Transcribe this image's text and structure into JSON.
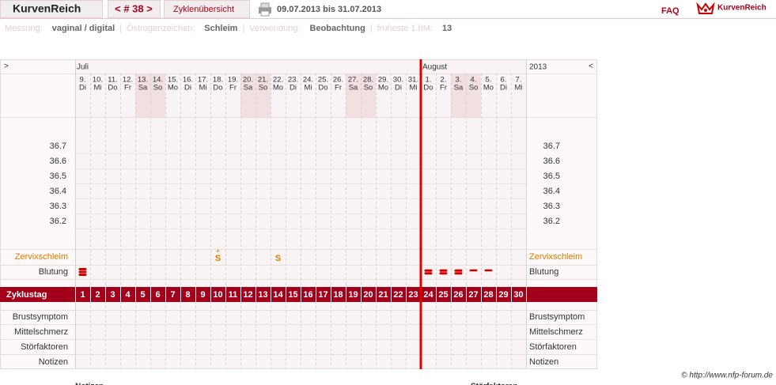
{
  "header": {
    "app_name": "KurvenReich",
    "cycle_nav": "< # 38 >",
    "tab": "Zyklenübersicht",
    "date_range": "09.07.2013 bis 31.07.2013",
    "faq": "FAQ",
    "logo_text": "KurvenReich"
  },
  "info": {
    "separator": "|",
    "items": [
      {
        "label": "Messung:",
        "value": "vaginal / digital"
      },
      {
        "label": "Östrogenzeichen:",
        "value": "Schleim"
      },
      {
        "label": "Verwendung:",
        "value": "Beobachtung"
      },
      {
        "label": "früheste 1.hM:",
        "value": "13"
      }
    ]
  },
  "table": {
    "left_arrow": ">",
    "right_arrow": "<",
    "year": "2013",
    "month_labels": [
      "Juli",
      null,
      null,
      null,
      null,
      null,
      null,
      null,
      null,
      null,
      null,
      null,
      null,
      null,
      null,
      null,
      null,
      null,
      null,
      null,
      null,
      null,
      null,
      "August",
      null,
      null,
      null,
      null,
      null,
      null
    ],
    "days": [
      {
        "date": "9.",
        "weekday": "Di"
      },
      {
        "date": "10.",
        "weekday": "Mi"
      },
      {
        "date": "11.",
        "weekday": "Do"
      },
      {
        "date": "12.",
        "weekday": "Fr"
      },
      {
        "date": "13.",
        "weekday": "Sa"
      },
      {
        "date": "14.",
        "weekday": "So"
      },
      {
        "date": "15.",
        "weekday": "Mo"
      },
      {
        "date": "16.",
        "weekday": "Di"
      },
      {
        "date": "17.",
        "weekday": "Mi"
      },
      {
        "date": "18.",
        "weekday": "Do"
      },
      {
        "date": "19.",
        "weekday": "Fr"
      },
      {
        "date": "20.",
        "weekday": "Sa"
      },
      {
        "date": "21.",
        "weekday": "So"
      },
      {
        "date": "22.",
        "weekday": "Mo"
      },
      {
        "date": "23.",
        "weekday": "Di"
      },
      {
        "date": "24.",
        "weekday": "Mi"
      },
      {
        "date": "25.",
        "weekday": "Do"
      },
      {
        "date": "26.",
        "weekday": "Fr"
      },
      {
        "date": "27.",
        "weekday": "Sa"
      },
      {
        "date": "28.",
        "weekday": "So"
      },
      {
        "date": "29.",
        "weekday": "Mo"
      },
      {
        "date": "30.",
        "weekday": "Di"
      },
      {
        "date": "31.",
        "weekday": "Mi"
      },
      {
        "date": "1.",
        "weekday": "Do"
      },
      {
        "date": "2.",
        "weekday": "Fr"
      },
      {
        "date": "3.",
        "weekday": "Sa"
      },
      {
        "date": "4.",
        "weekday": "So"
      },
      {
        "date": "5.",
        "weekday": "Mo"
      },
      {
        "date": "6.",
        "weekday": "Di"
      },
      {
        "date": "7.",
        "weekday": "Mi"
      }
    ],
    "temperature_ticks": [
      36.7,
      36.6,
      36.5,
      36.4,
      36.3,
      36.2
    ],
    "row_labels": {
      "zervix": "Zervixschleim",
      "blutung": "Blutung",
      "zyklustag": "Zyklustag",
      "brust": "Brustsymptom",
      "mittel": "Mittelschmerz",
      "stoer": "Störfaktoren",
      "notizen": "Notizen"
    },
    "zervix": [
      null,
      null,
      null,
      null,
      null,
      null,
      null,
      null,
      null,
      {
        "symbol": "S",
        "modifier": "+"
      },
      null,
      null,
      null,
      {
        "symbol": "S"
      },
      null,
      null,
      null,
      null,
      null,
      null,
      null,
      null,
      null,
      null,
      null,
      null,
      null,
      null,
      null,
      null
    ],
    "blutung": [
      3,
      null,
      null,
      null,
      null,
      null,
      null,
      null,
      null,
      null,
      null,
      null,
      null,
      null,
      null,
      null,
      null,
      null,
      null,
      null,
      null,
      null,
      null,
      2,
      2,
      2,
      1,
      1,
      null,
      null
    ],
    "zyklustag": [
      1,
      2,
      3,
      4,
      5,
      6,
      7,
      8,
      9,
      10,
      11,
      12,
      13,
      14,
      15,
      16,
      17,
      18,
      19,
      20,
      21,
      22,
      23,
      24,
      25,
      26,
      27,
      28,
      29,
      30
    ]
  },
  "footer": {
    "copyright": "© http://www.nfp-forum.de",
    "below_left": "Notizen",
    "below_right": "Störfaktoren"
  }
}
